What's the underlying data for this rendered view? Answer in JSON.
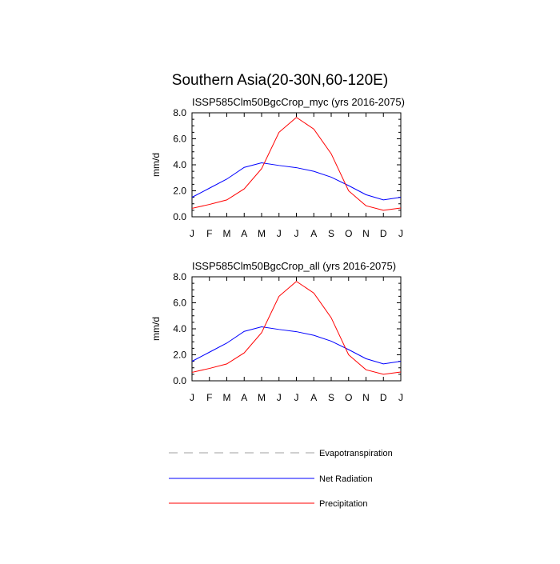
{
  "title": "Southern Asia(20-30N,60-120E)",
  "legend": {
    "entries": [
      {
        "name": "Evapotranspiration",
        "color": "#a0a0a0",
        "style": "dashed"
      },
      {
        "name": "Net Radiation",
        "color": "#0000ff",
        "style": "solid"
      },
      {
        "name": "Precipitation",
        "color": "#ff0000",
        "style": "solid"
      }
    ]
  },
  "chart_data": [
    {
      "type": "line",
      "title": "ISSP585Clm50BgcCrop_myc (yrs 2016-2075)",
      "xlabel": "",
      "ylabel": "mm/d",
      "x": [
        "J",
        "F",
        "M",
        "A",
        "M",
        "J",
        "J",
        "A",
        "S",
        "O",
        "N",
        "D",
        "J"
      ],
      "ylim": [
        0,
        8
      ],
      "yticks": [
        "0.0",
        "2.0",
        "4.0",
        "6.0",
        "8.0"
      ],
      "series": [
        {
          "name": "Net Radiation",
          "color": "#0000ff",
          "values": [
            1.5,
            2.2,
            2.9,
            3.8,
            4.15,
            3.95,
            3.78,
            3.5,
            3.05,
            2.4,
            1.7,
            1.3,
            1.5
          ]
        },
        {
          "name": "Precipitation",
          "color": "#ff0000",
          "values": [
            0.65,
            0.95,
            1.3,
            2.15,
            3.7,
            6.5,
            7.65,
            6.75,
            4.85,
            2.0,
            0.85,
            0.5,
            0.68
          ]
        }
      ]
    },
    {
      "type": "line",
      "title": "ISSP585Clm50BgcCrop_all (yrs 2016-2075)",
      "xlabel": "",
      "ylabel": "mm/d",
      "x": [
        "J",
        "F",
        "M",
        "A",
        "M",
        "J",
        "J",
        "A",
        "S",
        "O",
        "N",
        "D",
        "J"
      ],
      "ylim": [
        0,
        8
      ],
      "yticks": [
        "0.0",
        "2.0",
        "4.0",
        "6.0",
        "8.0"
      ],
      "series": [
        {
          "name": "Net Radiation",
          "color": "#0000ff",
          "values": [
            1.5,
            2.2,
            2.9,
            3.8,
            4.15,
            3.95,
            3.78,
            3.5,
            3.05,
            2.4,
            1.7,
            1.3,
            1.5
          ]
        },
        {
          "name": "Precipitation",
          "color": "#ff0000",
          "values": [
            0.65,
            0.95,
            1.3,
            2.15,
            3.7,
            6.5,
            7.65,
            6.75,
            4.85,
            2.0,
            0.85,
            0.5,
            0.68
          ]
        }
      ]
    }
  ]
}
